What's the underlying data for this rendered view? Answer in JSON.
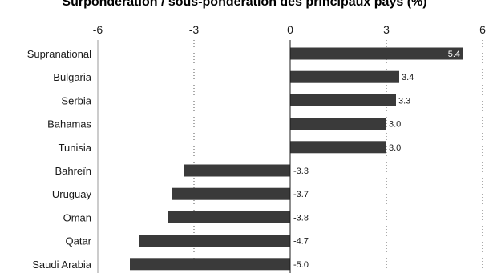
{
  "chart_data": {
    "type": "bar",
    "orientation": "horizontal",
    "title": "Surpondération / sous-pondération des principaux pays (%)",
    "categories": [
      "Supranational",
      "Bulgaria",
      "Serbia",
      "Bahamas",
      "Tunisia",
      "Bahreïn",
      "Uruguay",
      "Oman",
      "Qatar",
      "Saudi Arabia"
    ],
    "values": [
      5.4,
      3.4,
      3.3,
      3.0,
      3.0,
      -3.3,
      -3.7,
      -3.8,
      -4.7,
      -5.0
    ],
    "value_labels": [
      "5.4",
      "3.4",
      "3.3",
      "3.0",
      "3.0",
      "-3.3",
      "-3.7",
      "-3.8",
      "-4.7",
      "-5.0"
    ],
    "xlim": [
      -6,
      6
    ],
    "xticks": [
      -6,
      -3,
      0,
      3,
      6
    ],
    "xtick_labels": [
      "-6",
      "-3",
      "0",
      "3",
      "6"
    ],
    "axis_position": "top",
    "grid": "vertical-dotted",
    "bar_color": "#3a3a3a"
  }
}
